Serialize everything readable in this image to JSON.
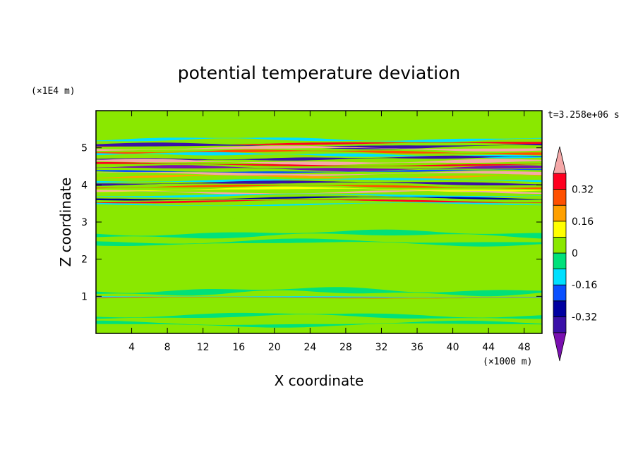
{
  "chart_data": {
    "type": "heatmap",
    "title": "potential temperature deviation",
    "xlabel": "X coordinate",
    "ylabel": "Z coordinate",
    "x_unit": "(×1000 m)",
    "y_unit": "(×1E4 m)",
    "time_label": "t=3.258e+06 s",
    "xlim": [
      0,
      50
    ],
    "ylim": [
      0,
      6
    ],
    "x_ticks": [
      4,
      8,
      12,
      16,
      20,
      24,
      28,
      32,
      36,
      40,
      44,
      48
    ],
    "y_ticks": [
      1,
      2,
      3,
      4,
      5
    ],
    "contour_levels": [
      -0.4,
      -0.32,
      -0.24,
      -0.16,
      -0.08,
      0,
      0.08,
      0.16,
      0.24,
      0.32,
      0.4
    ],
    "colorbar_labels": [
      "0.32",
      "0.16",
      "0",
      "-0.16",
      "-0.32"
    ],
    "colormap": [
      "#7a10b0",
      "#3a10a8",
      "#0000a0",
      "#0a50ff",
      "#00e0ff",
      "#00e17a",
      "#8ae800",
      "#ffff00",
      "#ffa000",
      "#ff5000",
      "#ff0020",
      "#f5a8a8"
    ]
  }
}
